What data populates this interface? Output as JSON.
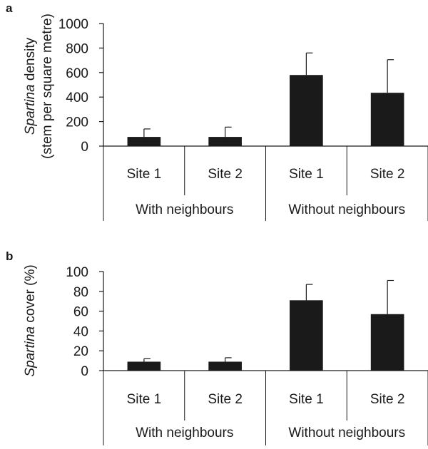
{
  "chart_data": [
    {
      "panel": "a",
      "type": "bar",
      "categories": [
        "Site 1",
        "Site 2",
        "Site 1",
        "Site 2"
      ],
      "groups": [
        "With neighbours",
        "Without neighbours"
      ],
      "values": [
        75,
        75,
        580,
        435
      ],
      "errors": [
        65,
        80,
        180,
        270
      ],
      "ylabel_italic": "Spartina",
      "ylabel_rest": " density",
      "ylabel_line2": "(stem per square metre)",
      "ylim": [
        0,
        1000
      ],
      "yticks": [
        0,
        200,
        400,
        600,
        800,
        1000
      ],
      "bar_color": "#1a1a1a"
    },
    {
      "panel": "b",
      "type": "bar",
      "categories": [
        "Site 1",
        "Site 2",
        "Site 1",
        "Site 2"
      ],
      "groups": [
        "With neighbours",
        "Without neighbours"
      ],
      "values": [
        9,
        9,
        71,
        57
      ],
      "errors": [
        3,
        4,
        16,
        34
      ],
      "ylabel_italic": "Spartina",
      "ylabel_rest": " cover (%)",
      "ylim": [
        0,
        100
      ],
      "yticks": [
        0,
        20,
        40,
        60,
        80,
        100
      ],
      "bar_color": "#1a1a1a"
    }
  ]
}
